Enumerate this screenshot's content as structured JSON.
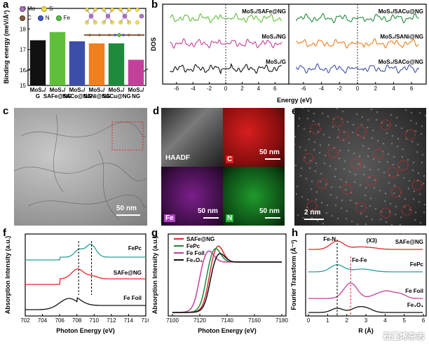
{
  "panel_labels": {
    "a": "a",
    "b": "b",
    "c": "c",
    "d": "d",
    "e": "e",
    "f": "f",
    "g": "g",
    "h": "h"
  },
  "legend_a": {
    "mo": "Mo",
    "s": "S",
    "c": "C",
    "n": "N",
    "fe": "Fe"
  },
  "colors": {
    "black": "#111111",
    "green": "#5fbf3a",
    "blue": "#3c4fa8",
    "orange": "#f07f1e",
    "dkgreen": "#1e8a3c",
    "pink": "#c2409a",
    "red": "#e3262a",
    "teal": "#2a9d9a"
  },
  "panel_c": {
    "scale": "50 nm"
  },
  "panel_d": {
    "haadf": "HAADF",
    "c": "C",
    "fe": "Fe",
    "n": "N",
    "scale1": "50 nm",
    "scale2": "50 nm",
    "scale3": "50 nm",
    "scale4": "50 nm"
  },
  "panel_e": {
    "scale": "2 nm"
  },
  "watermark": "石墨烯杂志",
  "chart_data": [
    {
      "panel": "a",
      "type": "bar",
      "ylabel": "Binding energy (meV/Å²)",
      "ylim": [
        15,
        19
      ],
      "broken_axis": true,
      "yticks": [
        "15",
        "16",
        "17",
        "18",
        "19"
      ],
      "categories": [
        "MoS2/G",
        "MoS2/SAFe@NG",
        "MoS2/SACo@NG",
        "MoS2/SANi@NG",
        "MoS2/SACu@NG",
        "MoS2/NG"
      ],
      "category_lines": [
        [
          "MoS₂/",
          "G"
        ],
        [
          "MoS₂/",
          "SAFe@NG"
        ],
        [
          "MoS₂/",
          "SACo@NG"
        ],
        [
          "MoS₂/",
          "SANi@NG"
        ],
        [
          "MoS₂/",
          "SACu@NG"
        ],
        [
          "MoS₂/",
          "NG"
        ]
      ],
      "values": [
        17.45,
        17.85,
        17.4,
        17.3,
        17.3,
        16.5
      ],
      "colors": [
        "#111111",
        "#5fbf3a",
        "#3c4fa8",
        "#f07f1e",
        "#1e8a3c",
        "#c2409a"
      ]
    },
    {
      "panel": "b",
      "type": "line",
      "xlabel": "Energy (eV)",
      "ylabel": "DOS",
      "xticks": [
        "-6",
        "-4",
        "-2",
        "0",
        "2",
        "4",
        "6"
      ],
      "subplots": [
        {
          "series": [
            {
              "name": "MoS₂/SAFe@NG",
              "color": "#5fbf3a"
            },
            {
              "name": "MoS₂/NG",
              "color": "#c2409a"
            },
            {
              "name": "MoS₂/G",
              "color": "#111111"
            }
          ]
        },
        {
          "series": [
            {
              "name": "MoS₂/SACu@NG",
              "color": "#1e8a3c"
            },
            {
              "name": "MoS₂/SANi@NG",
              "color": "#f07f1e"
            },
            {
              "name": "MoS₂/SACo@NG",
              "color": "#3c4fa8"
            }
          ]
        }
      ]
    },
    {
      "panel": "f",
      "type": "line",
      "xlabel": "Photon Energy (eV)",
      "ylabel": "Absorption Intensity (a.u.)",
      "xlim": [
        702,
        716
      ],
      "xticks": [
        "702",
        "704",
        "706",
        "708",
        "710",
        "712",
        "714",
        "716"
      ],
      "series": [
        {
          "name": "FePc",
          "color": "#2a9d9a"
        },
        {
          "name": "SAFe@NG",
          "color": "#e3262a"
        },
        {
          "name": "Fe Foil",
          "color": "#111111"
        }
      ]
    },
    {
      "panel": "g",
      "type": "line",
      "xlabel": "Photon Energy (eV)",
      "ylabel": "Absorption Intensity (a.u.)",
      "xlim": [
        7100,
        7180
      ],
      "xticks": [
        "7100",
        "7120",
        "7140",
        "7160",
        "7180"
      ],
      "series": [
        {
          "name": "SAFe@NG",
          "color": "#e3262a"
        },
        {
          "name": "FePc",
          "color": "#1e8a3c"
        },
        {
          "name": "Fe Foil",
          "color": "#c2409a"
        },
        {
          "name": "Fe₃O₄",
          "color": "#111111"
        }
      ]
    },
    {
      "panel": "h",
      "type": "line",
      "xlabel": "R (Å)",
      "ylabel": "Fourier Transform (Å⁻³)",
      "xlim": [
        0,
        6
      ],
      "xticks": [
        "0",
        "1",
        "2",
        "3",
        "4",
        "5",
        "6"
      ],
      "annotations": [
        "Fe-N",
        "Fe-Fe",
        "(X3)"
      ],
      "series": [
        {
          "name": "SAFe@NG",
          "color": "#e3262a"
        },
        {
          "name": "FePc",
          "color": "#2a9d9a"
        },
        {
          "name": "Fe Foil",
          "color": "#c2409a"
        },
        {
          "name": "Fe₃O₄",
          "color": "#111111"
        }
      ]
    }
  ]
}
